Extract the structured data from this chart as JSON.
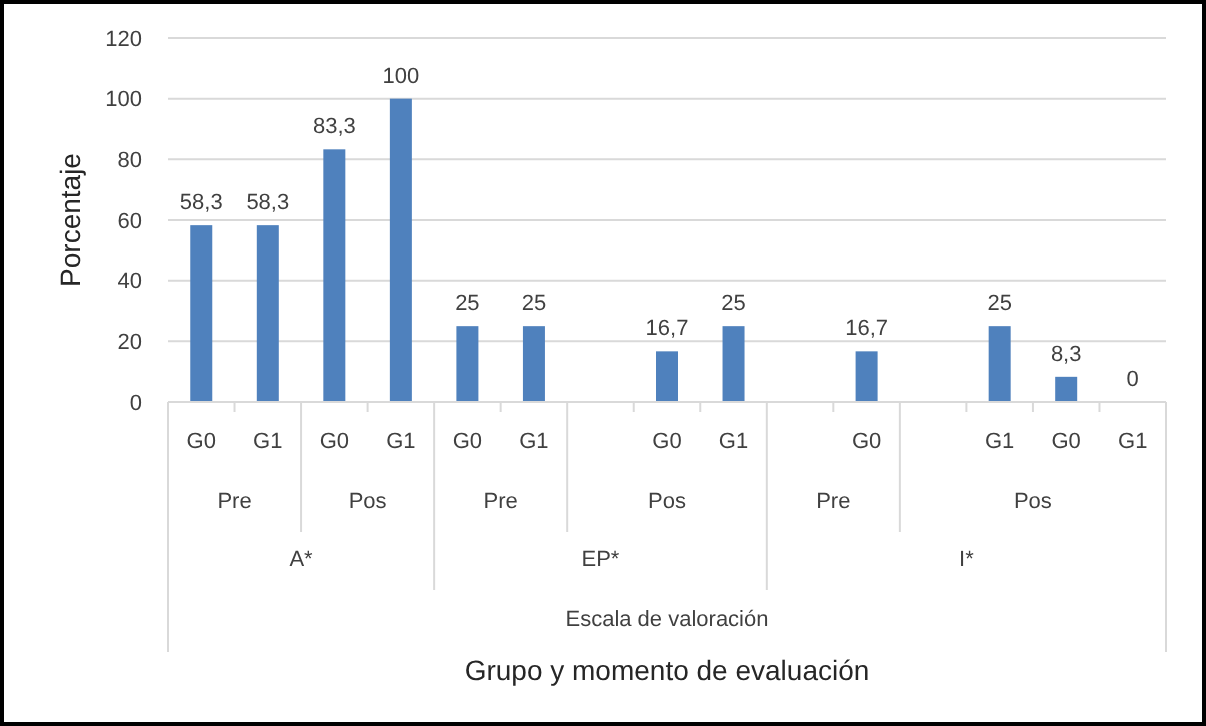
{
  "chart_data": {
    "type": "bar",
    "ylabel": "Porcentaje",
    "categories": [
      "G0",
      "G1",
      "G0",
      "G1",
      "G0",
      "G1",
      null,
      "G0",
      "G1",
      null,
      "G0",
      null,
      "G1",
      "G0",
      "G1"
    ],
    "values": [
      58.3,
      58.3,
      83.3,
      100,
      25,
      25,
      null,
      16.7,
      25,
      null,
      16.7,
      null,
      25,
      8.3,
      0
    ],
    "value_labels": [
      "58,3",
      "58,3",
      "83,3",
      "100",
      "25",
      "25",
      null,
      "16,7",
      "25",
      null,
      "16,7",
      null,
      "25",
      "8,3",
      "0"
    ],
    "color": "#4f81bd",
    "ylim": [
      0,
      120
    ],
    "yticks": [
      0,
      20,
      40,
      60,
      80,
      100,
      120
    ],
    "grid": "y",
    "annotations": [
      "Pre",
      "Pos",
      "Pre",
      "Pos",
      "Pre",
      "Pos",
      "A*",
      "EP*",
      "I*",
      "Escala de valoración",
      "Grupo y momento de evaluación"
    ]
  }
}
